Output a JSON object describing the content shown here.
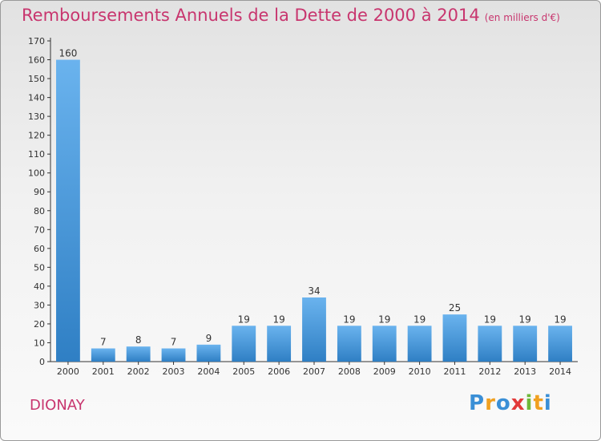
{
  "chart_data": {
    "type": "bar",
    "title": "Remboursements Annuels de la Dette de 2000 à 2014",
    "unit_label": "(en milliers d'€)",
    "categories": [
      "2000",
      "2001",
      "2002",
      "2003",
      "2004",
      "2005",
      "2006",
      "2007",
      "2008",
      "2009",
      "2010",
      "2011",
      "2012",
      "2013",
      "2014"
    ],
    "values": [
      160,
      7,
      8,
      7,
      9,
      19,
      19,
      34,
      19,
      19,
      19,
      25,
      19,
      19,
      19
    ],
    "ylim": [
      0,
      170
    ],
    "yticks": [
      0,
      10,
      20,
      30,
      40,
      50,
      60,
      70,
      80,
      90,
      100,
      110,
      120,
      130,
      140,
      150,
      160,
      170
    ],
    "xlabel": "",
    "ylabel": "",
    "grid": false,
    "colors": {
      "bar_light": "#6ab3ee",
      "bar_dark": "#2f7fc4",
      "title": "#c8356e",
      "axis": "#333333"
    }
  },
  "commune": "DIONAY",
  "logo": {
    "letters": [
      "P",
      "r",
      "o",
      "x",
      "i",
      "t",
      "i"
    ],
    "colors": [
      "#3a8fd6",
      "#f0a020",
      "#3a8fd6",
      "#e23a3a",
      "#6fb83a",
      "#f0a020",
      "#3a8fd6"
    ]
  }
}
